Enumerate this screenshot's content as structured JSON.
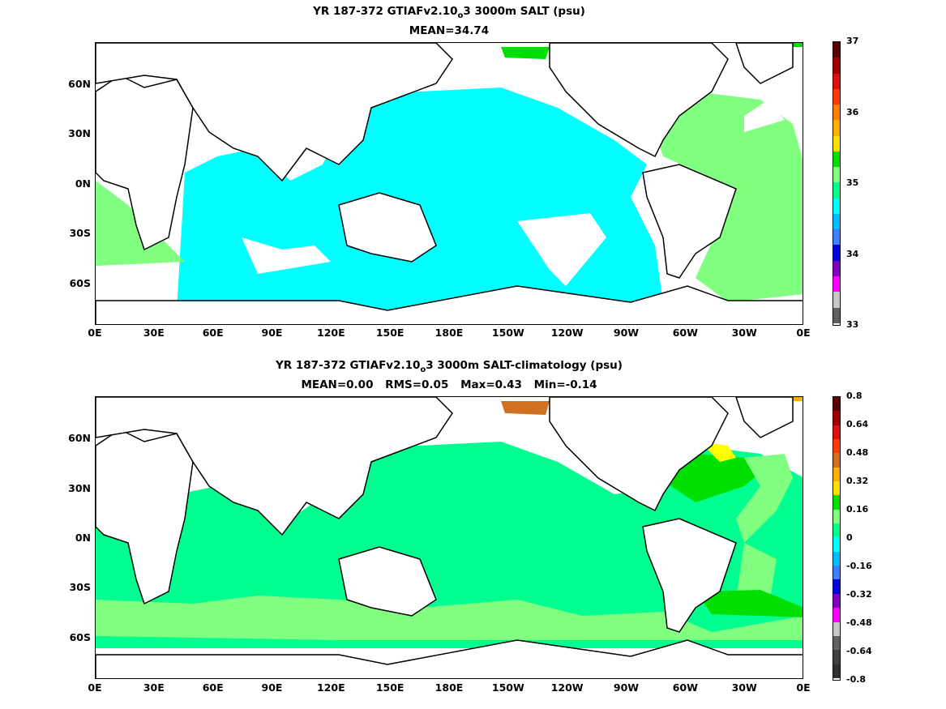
{
  "panels": [
    {
      "title_prefix": "YR 187-372 GTIAFv2.10",
      "title_sub": "o",
      "title_suffix": "3 3000m SALT (psu)",
      "stats": [
        "MEAN=34.74"
      ],
      "lat_labels": [
        "60N",
        "30N",
        "0N",
        "30S",
        "60S"
      ],
      "lon_labels": [
        "0E",
        "30E",
        "60E",
        "90E",
        "120E",
        "150E",
        "180E",
        "150W",
        "120W",
        "90W",
        "60W",
        "30W",
        "0E"
      ],
      "colorbar_labels": [
        "37",
        "36",
        "35",
        "34",
        "33"
      ],
      "colorbar_colors": [
        "#5a0000",
        "#a00000",
        "#e01010",
        "#ff3a00",
        "#ff8000",
        "#ffb000",
        "#ffe000",
        "#00e000",
        "#80ff80",
        "#00ff90",
        "#00ffff",
        "#00c0ff",
        "#4080ff",
        "#0000e0",
        "#8000c0",
        "#ff00ff",
        "#c8c8c8",
        "#606060"
      ],
      "chart_data": {
        "type": "heatmap",
        "title": "YR 187-372 GTIAFv2.10o3 3000m SALT (psu)",
        "subtitle": "MEAN=34.74",
        "xlabel": "",
        "ylabel": "",
        "x_ticks": [
          "0E",
          "30E",
          "60E",
          "90E",
          "120E",
          "150E",
          "180E",
          "150W",
          "120W",
          "90W",
          "60W",
          "30W",
          "0E"
        ],
        "y_ticks": [
          "60N",
          "30N",
          "0N",
          "30S",
          "60S"
        ],
        "colorbar": {
          "range": [
            33,
            37
          ],
          "labels": [
            37,
            36,
            35,
            34,
            33
          ]
        },
        "mean": 34.74
      }
    },
    {
      "title_prefix": "YR 187-372 GTIAFv2.10",
      "title_sub": "o",
      "title_suffix": "3 3000m SALT-climatology (psu)",
      "stats": [
        "MEAN=0.00",
        "RMS=0.05",
        "Max=0.43",
        "Min=-0.14"
      ],
      "lat_labels": [
        "60N",
        "30N",
        "0N",
        "30S",
        "60S"
      ],
      "lon_labels": [
        "0E",
        "30E",
        "60E",
        "90E",
        "120E",
        "150E",
        "180E",
        "150W",
        "120W",
        "90W",
        "60W",
        "30W",
        "0E"
      ],
      "colorbar_labels": [
        "0.8",
        "0.64",
        "0.48",
        "0.32",
        "0.16",
        "0",
        "-0.16",
        "-0.32",
        "-0.48",
        "-0.64",
        "-0.8"
      ],
      "colorbar_colors": [
        "#5a0000",
        "#a00000",
        "#e01010",
        "#ff3a00",
        "#d07020",
        "#ffb000",
        "#ffe000",
        "#00e000",
        "#80ff80",
        "#00ff90",
        "#00ffff",
        "#00c0ff",
        "#4080ff",
        "#0000e0",
        "#8000c0",
        "#ff00ff",
        "#c8c8c8",
        "#606060",
        "#404040",
        "#303030"
      ],
      "chart_data": {
        "type": "heatmap",
        "title": "YR 187-372 GTIAFv2.10o3 3000m SALT-climatology (psu)",
        "subtitle": "MEAN=0.00 RMS=0.05 Max=0.43 Min=-0.14",
        "xlabel": "",
        "ylabel": "",
        "x_ticks": [
          "0E",
          "30E",
          "60E",
          "90E",
          "120E",
          "150E",
          "180E",
          "150W",
          "120W",
          "90W",
          "60W",
          "30W",
          "0E"
        ],
        "y_ticks": [
          "60N",
          "30N",
          "0N",
          "30S",
          "60S"
        ],
        "colorbar": {
          "range": [
            -0.8,
            0.8
          ],
          "labels": [
            0.8,
            0.64,
            0.48,
            0.32,
            0.16,
            0,
            -0.16,
            -0.32,
            -0.48,
            -0.64,
            -0.8
          ]
        },
        "mean": 0.0,
        "rms": 0.05,
        "max": 0.43,
        "min": -0.14
      }
    }
  ],
  "colors": {
    "land": "#ffffff",
    "coast": "#000000",
    "top_pacific_indian": "#00ffff",
    "top_atlantic": "#80ff80",
    "top_arctic": "#00e000",
    "diff_ocean": "#00ff90",
    "diff_light": "#80ff80",
    "diff_green": "#00e000",
    "diff_yellow": "#ffff00",
    "diff_orange": "#ffb000",
    "diff_brown": "#d07020"
  }
}
